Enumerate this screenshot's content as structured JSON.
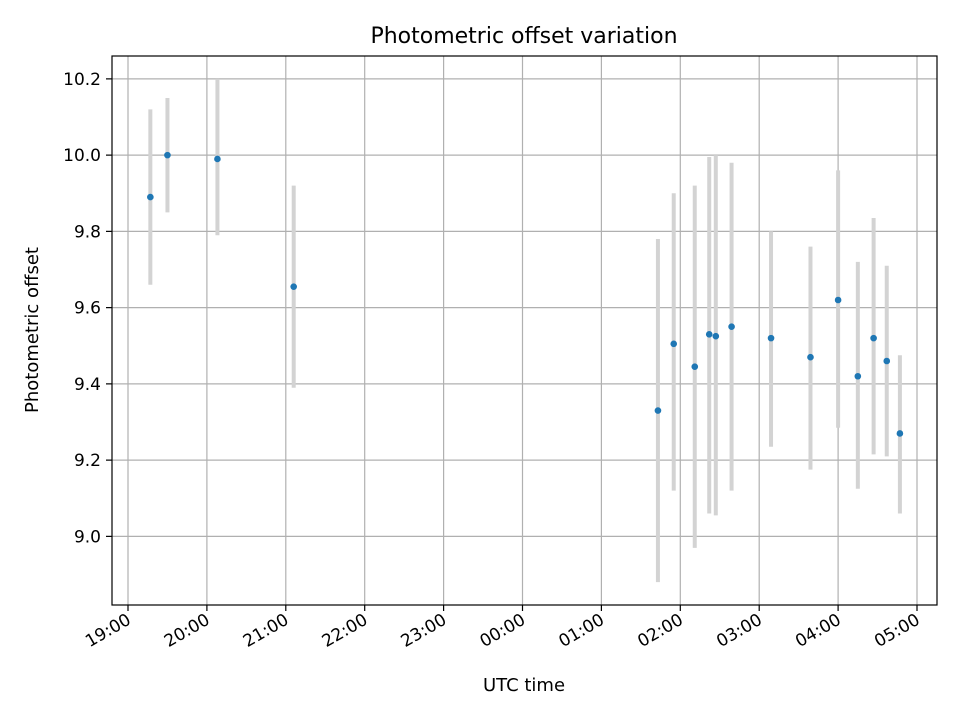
{
  "chart_data": {
    "type": "scatter",
    "title": "Photometric offset variation",
    "xlabel": "UTC time",
    "ylabel": "Photometric offset",
    "x_axis": "time",
    "xlim": [
      "19:00",
      "05:00"
    ],
    "ylim": [
      8.82,
      10.26
    ],
    "x_ticks": [
      "19:00",
      "20:00",
      "21:00",
      "22:00",
      "23:00",
      "00:00",
      "01:00",
      "02:00",
      "03:00",
      "04:00",
      "05:00"
    ],
    "y_ticks": [
      9.0,
      9.2,
      9.4,
      9.6,
      9.8,
      10.0,
      10.2
    ],
    "grid": true,
    "point_color": "#1f77b4",
    "error_bar_color": "#d3d3d3",
    "points": [
      {
        "t": "19:17",
        "y": 9.89,
        "low": 9.66,
        "high": 10.12
      },
      {
        "t": "19:30",
        "y": 10.0,
        "low": 9.85,
        "high": 10.15
      },
      {
        "t": "20:08",
        "y": 9.99,
        "low": 9.79,
        "high": 10.2
      },
      {
        "t": "21:06",
        "y": 9.655,
        "low": 9.39,
        "high": 9.92
      },
      {
        "t": "01:43",
        "y": 9.33,
        "low": 8.88,
        "high": 9.78
      },
      {
        "t": "01:55",
        "y": 9.505,
        "low": 9.12,
        "high": 9.9
      },
      {
        "t": "02:11",
        "y": 9.445,
        "low": 8.97,
        "high": 9.92
      },
      {
        "t": "02:22",
        "y": 9.53,
        "low": 9.06,
        "high": 9.995
      },
      {
        "t": "02:27",
        "y": 9.525,
        "low": 9.055,
        "high": 10.0
      },
      {
        "t": "02:39",
        "y": 9.55,
        "low": 9.12,
        "high": 9.98
      },
      {
        "t": "03:09",
        "y": 9.52,
        "low": 9.235,
        "high": 9.8
      },
      {
        "t": "03:39",
        "y": 9.47,
        "low": 9.175,
        "high": 9.76
      },
      {
        "t": "04:00",
        "y": 9.62,
        "low": 9.285,
        "high": 9.96
      },
      {
        "t": "04:15",
        "y": 9.42,
        "low": 9.125,
        "high": 9.72
      },
      {
        "t": "04:27",
        "y": 9.52,
        "low": 9.215,
        "high": 9.835
      },
      {
        "t": "04:37",
        "y": 9.46,
        "low": 9.21,
        "high": 9.71
      },
      {
        "t": "04:47",
        "y": 9.27,
        "low": 9.06,
        "high": 9.475
      }
    ]
  }
}
